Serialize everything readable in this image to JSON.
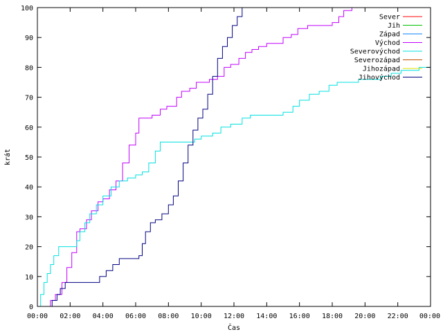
{
  "chart_data": {
    "type": "line",
    "xlabel": "Čas",
    "ylabel": "krát",
    "xlim": [
      0,
      24
    ],
    "ylim": [
      0,
      100
    ],
    "x_ticks": [
      {
        "value": 0,
        "label": "00:00"
      },
      {
        "value": 2,
        "label": "02:00"
      },
      {
        "value": 4,
        "label": "04:00"
      },
      {
        "value": 6,
        "label": "06:00"
      },
      {
        "value": 8,
        "label": "08:00"
      },
      {
        "value": 10,
        "label": "10:00"
      },
      {
        "value": 12,
        "label": "12:00"
      },
      {
        "value": 14,
        "label": "14:00"
      },
      {
        "value": 16,
        "label": "16:00"
      },
      {
        "value": 18,
        "label": "18:00"
      },
      {
        "value": 20,
        "label": "20:00"
      },
      {
        "value": 22,
        "label": "22:00"
      },
      {
        "value": 24,
        "label": "00:00"
      }
    ],
    "y_ticks": [
      0,
      10,
      20,
      30,
      40,
      50,
      60,
      70,
      80,
      90,
      100
    ],
    "grid": false,
    "legend_position": "top-right",
    "series": [
      {
        "name": "Sever",
        "color": "#ff0000",
        "x": [],
        "y": []
      },
      {
        "name": "Jih",
        "color": "#00c000",
        "x": [],
        "y": []
      },
      {
        "name": "Západ",
        "color": "#0080ff",
        "x": [],
        "y": []
      },
      {
        "name": "Východ",
        "color": "#c000ff",
        "x": [
          0.7,
          0.8,
          1.1,
          1.5,
          1.8,
          2.1,
          2.4,
          2.6,
          3.0,
          3.3,
          3.7,
          4.0,
          4.4,
          4.8,
          5.2,
          5.6,
          6.0,
          6.2,
          6.6,
          7.0,
          7.5,
          7.9,
          8.5,
          8.8,
          9.3,
          9.7,
          10.0,
          10.5,
          11.0,
          11.4,
          11.8,
          12.3,
          12.7,
          13.1,
          13.5,
          14.0,
          14.5,
          15.0,
          15.5,
          15.9,
          16.5,
          17.0,
          17.5,
          18.0,
          18.4,
          18.7,
          18.9,
          19.2
        ],
        "y": [
          0,
          2,
          4,
          8,
          13,
          18,
          25,
          26,
          29,
          32,
          35,
          36,
          39,
          42,
          48,
          54,
          58,
          63,
          63,
          64,
          66,
          67,
          70,
          72,
          73,
          75,
          75,
          76,
          77,
          80,
          81,
          83,
          85,
          86,
          87,
          88,
          88,
          90,
          91,
          93,
          94,
          94,
          94,
          95,
          97,
          99,
          99,
          100
        ]
      },
      {
        "name": "Severovýchod",
        "color": "#00e0e0",
        "x": [
          0,
          0.2,
          0.4,
          0.6,
          0.8,
          1.0,
          1.3,
          1.6,
          2.0,
          2.4,
          2.6,
          2.9,
          3.2,
          3.6,
          4.0,
          4.5,
          5.0,
          5.5,
          6.0,
          6.4,
          6.8,
          7.2,
          7.5,
          8.0,
          8.6,
          9.2,
          9.6,
          10.0,
          10.7,
          11.2,
          11.8,
          12.5,
          13.0,
          14.0,
          15.0,
          15.6,
          16.0,
          16.6,
          17.2,
          17.8,
          18.3,
          19.0,
          19.6,
          20.2,
          21.0,
          21.6,
          22.2,
          22.8,
          23.3,
          24
        ],
        "y": [
          0,
          4,
          8,
          11,
          14,
          17,
          20,
          20,
          20,
          22,
          25,
          28,
          31,
          34,
          37,
          40,
          42,
          43,
          44,
          45,
          48,
          52,
          55,
          55,
          55,
          55,
          56,
          57,
          58,
          60,
          61,
          63,
          64,
          64,
          65,
          67,
          69,
          71,
          72,
          74,
          75,
          75,
          76,
          76,
          77,
          78,
          79,
          79,
          80,
          80
        ]
      },
      {
        "name": "Severozápad",
        "color": "#c05000",
        "x": [],
        "y": []
      },
      {
        "name": "Jihozápad",
        "color": "#e0e000",
        "x": [],
        "y": []
      },
      {
        "name": "Jihovýchod",
        "color": "#000080",
        "x": [
          0.6,
          0.9,
          1.2,
          1.4,
          1.7,
          2.2,
          2.8,
          3.4,
          3.8,
          4.2,
          4.6,
          5.0,
          5.4,
          5.8,
          6.2,
          6.4,
          6.6,
          6.9,
          7.2,
          7.6,
          8.0,
          8.3,
          8.6,
          8.9,
          9.2,
          9.5,
          9.8,
          10.1,
          10.4,
          10.7,
          11.0,
          11.3,
          11.6,
          11.9,
          12.2,
          12.5
        ],
        "y": [
          0,
          2,
          4,
          6,
          8,
          8,
          8,
          8,
          10,
          12,
          14,
          16,
          16,
          16,
          17,
          21,
          25,
          28,
          29,
          31,
          34,
          37,
          42,
          48,
          54,
          59,
          63,
          66,
          71,
          77,
          83,
          87,
          90,
          94,
          97,
          100
        ]
      }
    ]
  }
}
